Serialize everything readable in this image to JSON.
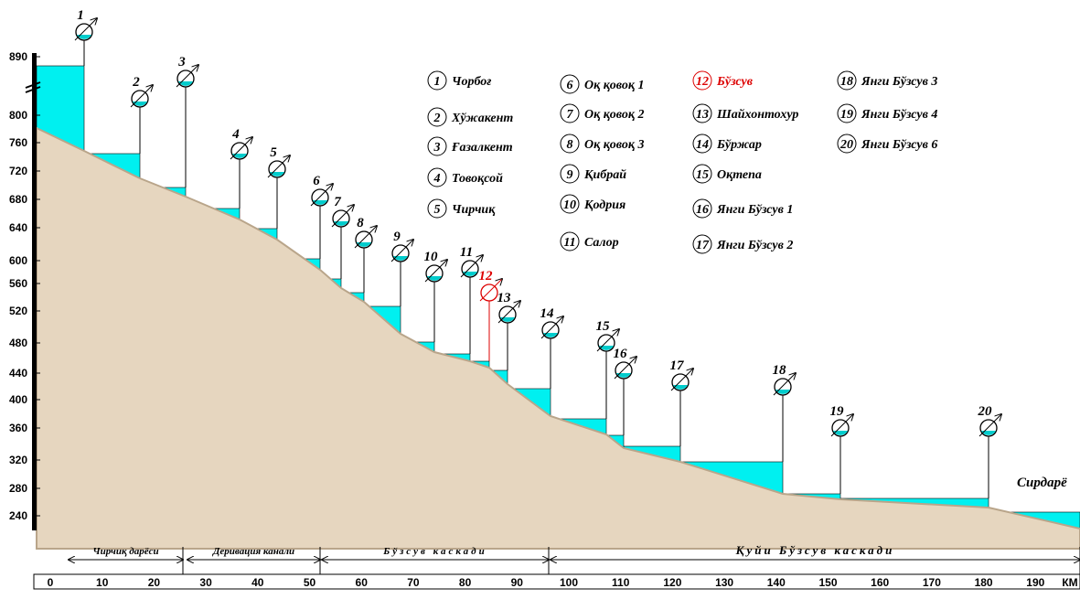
{
  "y_axis": {
    "labels": [
      "890",
      "800",
      "760",
      "720",
      "680",
      "640",
      "600",
      "560",
      "520",
      "480",
      "440",
      "400",
      "360",
      "320",
      "280",
      "240"
    ]
  },
  "x_axis": {
    "labels": [
      "0",
      "10",
      "20",
      "30",
      "40",
      "50",
      "60",
      "70",
      "80",
      "90",
      "100",
      "110",
      "120",
      "130",
      "140",
      "150",
      "160",
      "170",
      "180",
      "190",
      "КМ"
    ]
  },
  "stations": [
    {
      "number": "1",
      "name": "Чорбоғ"
    },
    {
      "number": "2",
      "name": "Хўжакент"
    },
    {
      "number": "3",
      "name": "Ғазалкент"
    },
    {
      "number": "4",
      "name": "Товоқсой"
    },
    {
      "number": "5",
      "name": "Чирчиқ"
    },
    {
      "number": "6",
      "name": "Оқ қовоқ 1"
    },
    {
      "number": "7",
      "name": "Оқ қовоқ 2"
    },
    {
      "number": "8",
      "name": "Оқ қовоқ 3"
    },
    {
      "number": "9",
      "name": "Қибрай"
    },
    {
      "number": "10",
      "name": "Қодрия"
    },
    {
      "number": "11",
      "name": "Салор"
    },
    {
      "number": "12",
      "name": "Бўзсув"
    },
    {
      "number": "13",
      "name": "Шайхонтохур"
    },
    {
      "number": "14",
      "name": "Бўржар"
    },
    {
      "number": "15",
      "name": "Оқтепа"
    },
    {
      "number": "16",
      "name": "Янги Бўзсув 1"
    },
    {
      "number": "17",
      "name": "Янги Бўзсув 2"
    },
    {
      "number": "18",
      "name": "Янги Бўзсув 3"
    },
    {
      "number": "19",
      "name": "Янги Бўзсув 4"
    },
    {
      "number": "20",
      "name": "Янги Бўзсув 6"
    }
  ],
  "sections": [
    "Чирчиқ дарёси",
    "Деривация канали",
    "Бўзсув каскади",
    "Қуйи Бўзсув каскади"
  ],
  "river": "Сирдарё"
}
